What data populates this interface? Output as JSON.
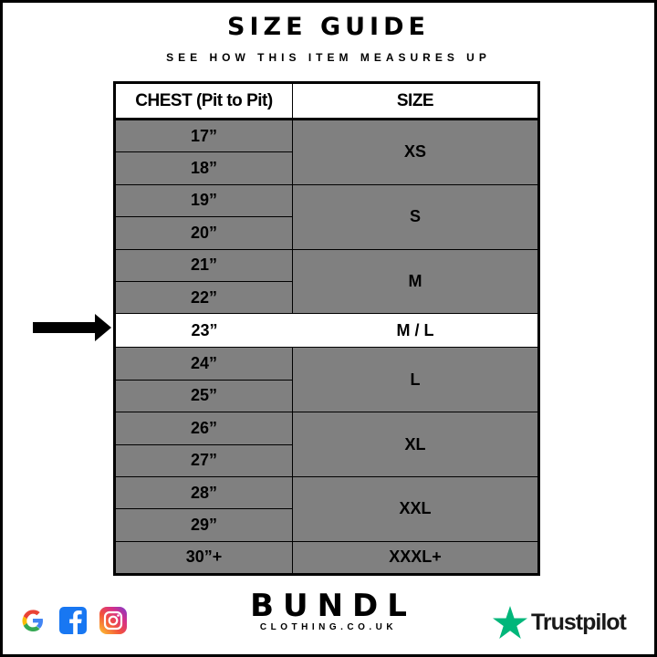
{
  "title": "SIZE GUIDE",
  "subtitle": "SEE HOW THIS ITEM MEASURES UP",
  "table": {
    "headers": [
      "CHEST (Pit to Pit)",
      "SIZE"
    ],
    "groups": [
      {
        "size": "XS",
        "chest": [
          "17”",
          "18”"
        ]
      },
      {
        "size": "S",
        "chest": [
          "19”",
          "20”"
        ]
      },
      {
        "size": "M",
        "chest": [
          "21”",
          "22”"
        ]
      },
      {
        "size": "M / L",
        "chest": [
          "23”"
        ],
        "highlighted": true
      },
      {
        "size": "L",
        "chest": [
          "24”",
          "25”"
        ]
      },
      {
        "size": "XL",
        "chest": [
          "26”",
          "27”"
        ]
      },
      {
        "size": "XXL",
        "chest": [
          "28”",
          "29”"
        ]
      },
      {
        "size": "XXXL+",
        "chest": [
          "30”+"
        ]
      }
    ]
  },
  "highlight_indicator": "arrow-right-icon",
  "colors": {
    "row_bg": "#808080",
    "highlight_bg": "#ffffff",
    "trustpilot_green": "#00b67a"
  },
  "footer": {
    "social_icons": [
      "google-icon",
      "facebook-icon",
      "instagram-icon"
    ],
    "brand_name": "BUNDL",
    "brand_sub": "CLOTHING.CO.UK",
    "trustpilot": "Trustpilot"
  }
}
